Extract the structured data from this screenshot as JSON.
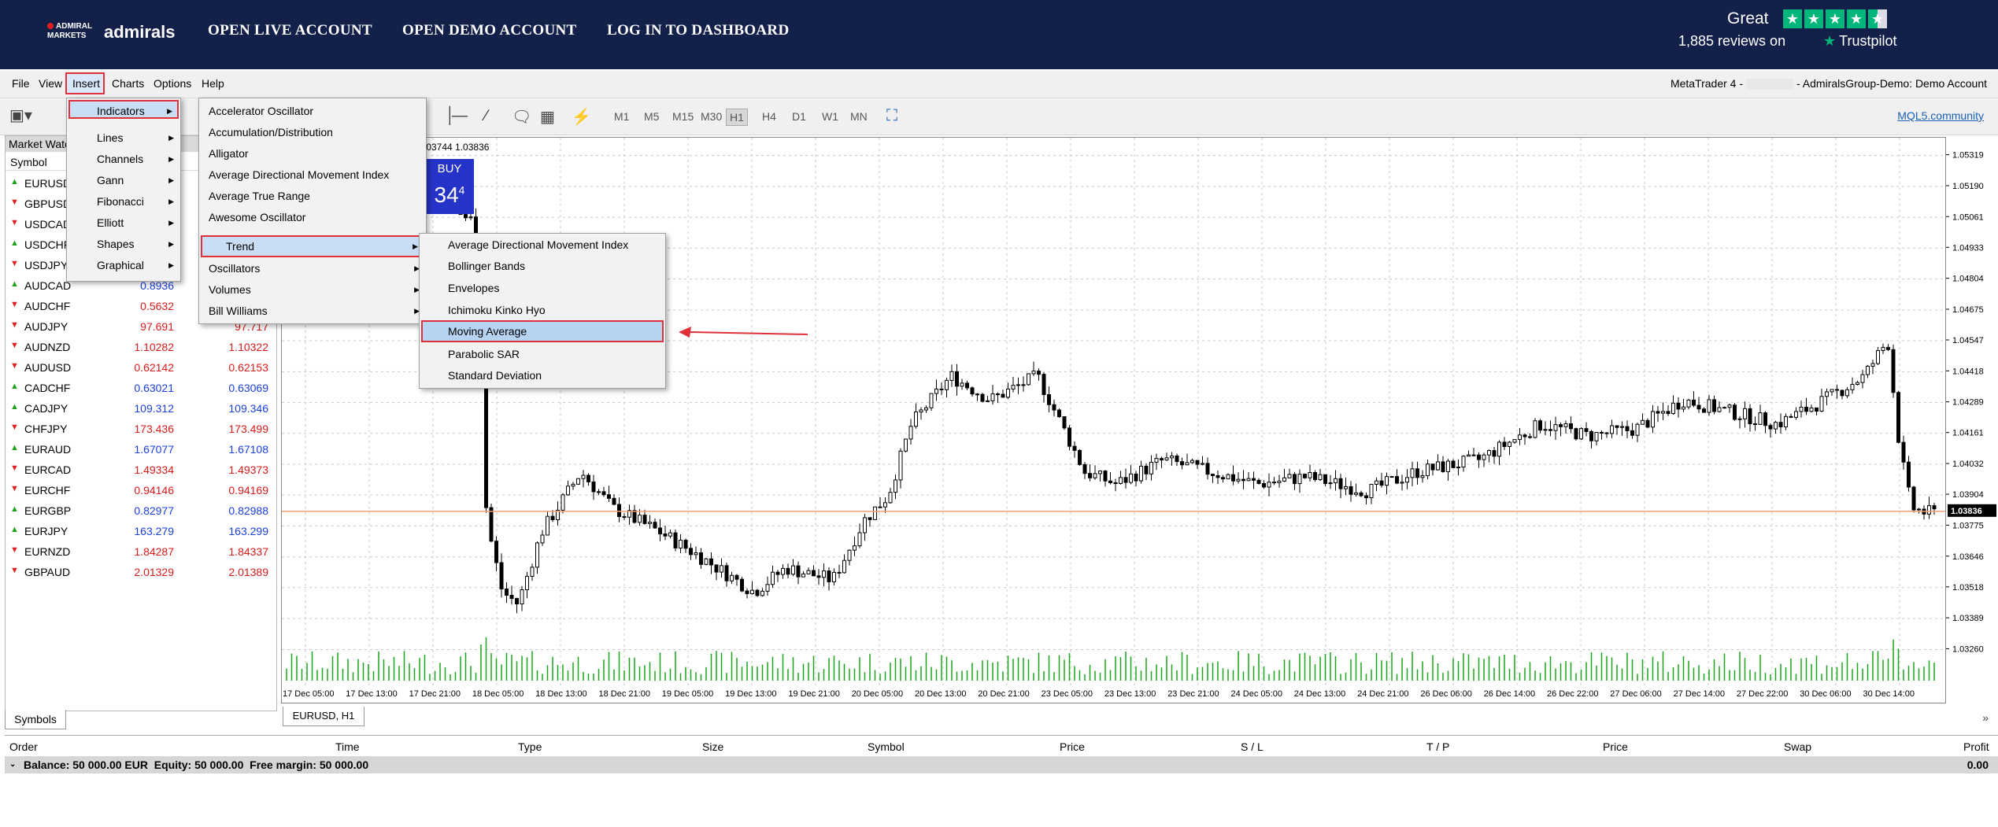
{
  "banner": {
    "logo_small": "ADMIRAL MARKETS",
    "logo_text": "admirals",
    "links": [
      "OPEN LIVE ACCOUNT",
      "OPEN DEMO ACCOUNT",
      "LOG IN TO DASHBOARD"
    ],
    "trustpilot_rating": "Great",
    "trustpilot_reviews": "1,885 reviews on",
    "trustpilot_brand": "Trustpilot",
    "trustpilot_stars": 4.5
  },
  "menubar": {
    "items": [
      "File",
      "View",
      "Insert",
      "Charts",
      "Options",
      "Help"
    ],
    "title_left": "MetaTrader 4 -",
    "title_right": "- AdmiralsGroup-Demo: Demo Account"
  },
  "toolbar": {
    "timeframes": [
      "M1",
      "M5",
      "M15",
      "M30",
      "H1",
      "H4",
      "D1",
      "W1",
      "MN"
    ],
    "active_timeframe": "H1",
    "community_link": "MQL5.community"
  },
  "market_watch": {
    "title": "Market Watc",
    "column_symbol": "Symbol",
    "rows": [
      {
        "dir": "up",
        "symbol": "EURUSD",
        "bid": "",
        "ask": ""
      },
      {
        "dir": "down",
        "symbol": "GBPUSD",
        "bid": "",
        "ask": ""
      },
      {
        "dir": "down",
        "symbol": "USDCAD",
        "bid": "",
        "ask": ""
      },
      {
        "dir": "up",
        "symbol": "USDCHF",
        "bid": "",
        "ask": ""
      },
      {
        "dir": "down",
        "symbol": "USDJPY",
        "bid": "",
        "ask": ""
      },
      {
        "dir": "up",
        "symbol": "AUDCAD",
        "bid": "0.8936",
        "ask": ""
      },
      {
        "dir": "down",
        "symbol": "AUDCHF",
        "bid": "0.5632",
        "ask": ""
      },
      {
        "dir": "down",
        "symbol": "AUDJPY",
        "bid": "97.691",
        "ask": "97.717"
      },
      {
        "dir": "down",
        "symbol": "AUDNZD",
        "bid": "1.10282",
        "ask": "1.10322"
      },
      {
        "dir": "down",
        "symbol": "AUDUSD",
        "bid": "0.62142",
        "ask": "0.62153"
      },
      {
        "dir": "up",
        "symbol": "CADCHF",
        "bid": "0.63021",
        "ask": "0.63069"
      },
      {
        "dir": "up",
        "symbol": "CADJPY",
        "bid": "109.312",
        "ask": "109.346"
      },
      {
        "dir": "down",
        "symbol": "CHFJPY",
        "bid": "173.436",
        "ask": "173.499"
      },
      {
        "dir": "up",
        "symbol": "EURAUD",
        "bid": "1.67077",
        "ask": "1.67108"
      },
      {
        "dir": "down",
        "symbol": "EURCAD",
        "bid": "1.49334",
        "ask": "1.49373"
      },
      {
        "dir": "down",
        "symbol": "EURCHF",
        "bid": "0.94146",
        "ask": "0.94169"
      },
      {
        "dir": "up",
        "symbol": "EURGBP",
        "bid": "0.82977",
        "ask": "0.82988"
      },
      {
        "dir": "up",
        "symbol": "EURJPY",
        "bid": "163.279",
        "ask": "163.299"
      },
      {
        "dir": "down",
        "symbol": "EURNZD",
        "bid": "1.84287",
        "ask": "1.84337"
      },
      {
        "dir": "down",
        "symbol": "GBPAUD",
        "bid": "2.01329",
        "ask": "2.01389"
      }
    ],
    "tab_label": "Symbols"
  },
  "chart": {
    "tab_label": "EURUSD, H1",
    "ohlc_text": ".03744 1.03836",
    "buy_label": "BUY",
    "buy_price_main": "34",
    "buy_price_sup": "4",
    "current_price": "1.03836",
    "price_labels": [
      "1.05319",
      "1.05190",
      "1.05061",
      "1.04933",
      "1.04804",
      "1.04675",
      "1.04547",
      "1.04418",
      "1.04289",
      "1.04161",
      "1.04032",
      "1.03904",
      "1.03775",
      "1.03646",
      "1.03518",
      "1.03389",
      "1.03260"
    ],
    "time_labels": [
      "17 Dec 05:00",
      "17 Dec 13:00",
      "17 Dec 21:00",
      "18 Dec 05:00",
      "18 Dec 13:00",
      "18 Dec 21:00",
      "19 Dec 05:00",
      "19 Dec 13:00",
      "19 Dec 21:00",
      "20 Dec 05:00",
      "20 Dec 13:00",
      "20 Dec 21:00",
      "23 Dec 05:00",
      "23 Dec 13:00",
      "23 Dec 21:00",
      "24 Dec 05:00",
      "24 Dec 13:00",
      "24 Dec 21:00",
      "26 Dec 06:00",
      "26 Dec 14:00",
      "26 Dec 22:00",
      "27 Dec 06:00",
      "27 Dec 14:00",
      "27 Dec 22:00",
      "30 Dec 06:00",
      "30 Dec 14:00"
    ]
  },
  "insert_menu": {
    "items": [
      {
        "label": "Indicators",
        "sub": true
      },
      {
        "label": "Lines",
        "sub": true
      },
      {
        "label": "Channels",
        "sub": true
      },
      {
        "label": "Gann",
        "sub": true
      },
      {
        "label": "Fibonacci",
        "sub": true
      },
      {
        "label": "Elliott",
        "sub": true
      },
      {
        "label": "Shapes",
        "sub": true
      },
      {
        "label": "Graphical",
        "sub": true
      }
    ]
  },
  "indicators_menu": {
    "items": [
      {
        "label": "Accelerator Oscillator",
        "sub": false
      },
      {
        "label": "Accumulation/Distribution",
        "sub": false
      },
      {
        "label": "Alligator",
        "sub": false
      },
      {
        "label": "Average Directional Movement Index",
        "sub": false
      },
      {
        "label": "Average True Range",
        "sub": false
      },
      {
        "label": "Awesome Oscillator",
        "sub": false
      },
      {
        "label": "Trend",
        "sub": true
      },
      {
        "label": "Oscillators",
        "sub": true
      },
      {
        "label": "Volumes",
        "sub": true
      },
      {
        "label": "Bill Williams",
        "sub": true
      }
    ]
  },
  "trend_menu": {
    "items": [
      {
        "label": "Average Directional Movement Index"
      },
      {
        "label": "Bollinger Bands"
      },
      {
        "label": "Envelopes"
      },
      {
        "label": "Ichimoku Kinko Hyo"
      },
      {
        "label": "Moving Average"
      },
      {
        "label": "Parabolic SAR"
      },
      {
        "label": "Standard Deviation"
      }
    ]
  },
  "terminal": {
    "headers": [
      "Order",
      "Time",
      "Type",
      "Size",
      "Symbol",
      "Price",
      "S / L",
      "T / P",
      "Price",
      "Swap",
      "Profit"
    ],
    "balance_text": "Balance: 50 000.00 EUR  Equity: 50 000.00  Free margin: 50 000.00",
    "profit_total": "0.00"
  },
  "colors": {
    "banner_bg": "#13204a",
    "trustpilot_green": "#00b67a",
    "highlight_red": "#e0303a",
    "price_line": "#f0a070",
    "buy_blue": "#2633c8",
    "volume_green": "#1aa31a"
  }
}
